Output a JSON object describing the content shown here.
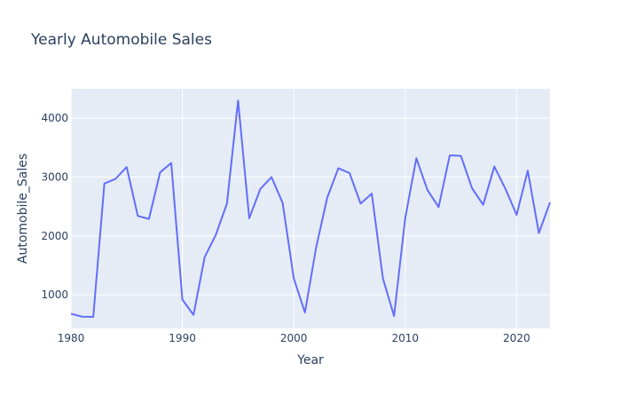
{
  "chart_data": {
    "type": "line",
    "title": "Yearly Automobile Sales",
    "xlabel": "Year",
    "ylabel": "Automobile_Sales",
    "xlim": [
      1980,
      2023
    ],
    "ylim": [
      430,
      4500
    ],
    "x_ticks": [
      1980,
      1990,
      2000,
      2010,
      2020
    ],
    "y_ticks": [
      1000,
      2000,
      3000,
      4000
    ],
    "grid": true,
    "background_color": "#e5ecf6",
    "series": [
      {
        "color": "#636efa",
        "x": [
          1980,
          1981,
          1982,
          1983,
          1984,
          1985,
          1986,
          1987,
          1988,
          1989,
          1990,
          1991,
          1992,
          1993,
          1994,
          1995,
          1996,
          1997,
          1998,
          1999,
          2000,
          2001,
          2002,
          2003,
          2004,
          2005,
          2006,
          2007,
          2008,
          2009,
          2010,
          2011,
          2012,
          2013,
          2014,
          2015,
          2016,
          2017,
          2018,
          2019,
          2020,
          2021,
          2022,
          2023
        ],
        "y": [
          680,
          630,
          625,
          2890,
          2970,
          3170,
          2340,
          2290,
          3080,
          3240,
          920,
          660,
          1640,
          2020,
          2550,
          4300,
          2300,
          2800,
          3000,
          2560,
          1280,
          700,
          1800,
          2650,
          3150,
          3070,
          2550,
          2720,
          1280,
          640,
          2300,
          3320,
          2780,
          2490,
          3370,
          3360,
          2810,
          2530,
          3180,
          2800,
          2360,
          3110,
          2050,
          2570
        ]
      }
    ]
  }
}
